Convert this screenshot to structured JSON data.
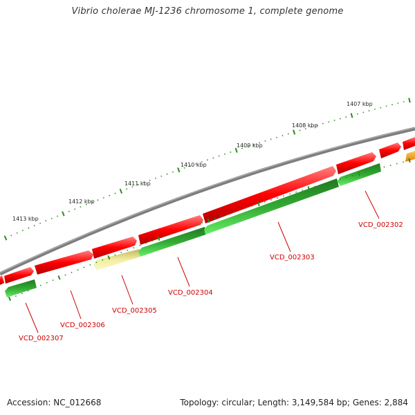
{
  "title": "Vibrio cholerae MJ-1236 chromosome 1, complete genome",
  "footer": {
    "accession": "Accession: NC_012668",
    "topology": "Topology: circular; Length: 3,149,584 bp; Genes: 2,884"
  },
  "colors": {
    "forward": "#ff0000",
    "reverse": "#33cc33",
    "reverse_light": "#f4eea0",
    "other": "#ff9900",
    "backbone": "#808080",
    "ticks": "#2e8b1f",
    "labels": "#cc0000"
  },
  "kbp_labels": [
    {
      "text": "1407 kbp"
    },
    {
      "text": "1408 kbp"
    },
    {
      "text": "1409 kbp"
    },
    {
      "text": "1410 kbp"
    },
    {
      "text": "1411 kbp"
    },
    {
      "text": "1412 kbp"
    },
    {
      "text": "1413 kbp"
    }
  ],
  "gene_labels": [
    {
      "text": "VCD_002302"
    },
    {
      "text": "VCD_002303"
    },
    {
      "text": "VCD_002304"
    },
    {
      "text": "VCD_002305"
    },
    {
      "text": "VCD_002306"
    },
    {
      "text": "VCD_002307"
    }
  ]
}
